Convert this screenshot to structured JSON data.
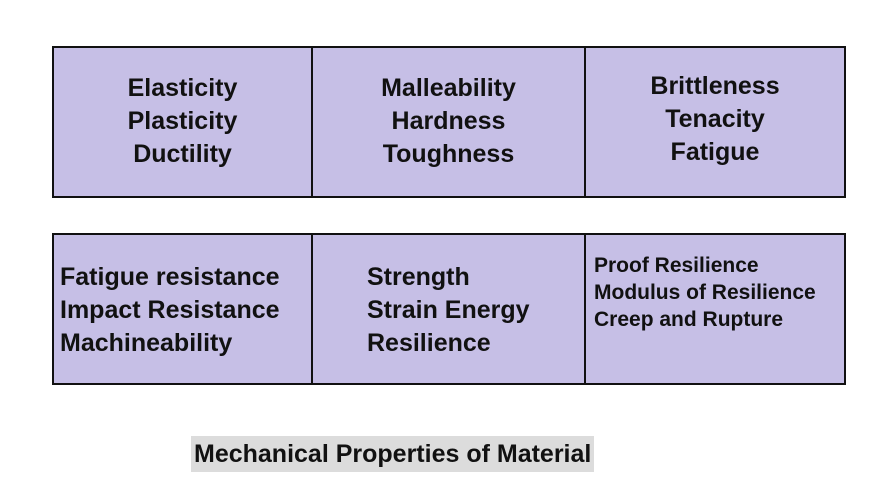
{
  "rows": [
    [
      [
        "Elasticity",
        "Plasticity",
        "Ductility"
      ],
      [
        "Malleability",
        "Hardness",
        "Toughness"
      ],
      [
        "Brittleness",
        "Tenacity",
        "Fatigue"
      ]
    ],
    [
      [
        "Fatigue resistance",
        "Impact Resistance",
        "Machineability"
      ],
      [
        "Strength",
        "Strain Energy",
        "Resilience"
      ],
      [
        "Proof Resilience",
        "Modulus of Resilience",
        "Creep and Rupture"
      ]
    ]
  ],
  "caption": "Mechanical Properties of Material",
  "colors": {
    "cell_fill": "#c6bfe6",
    "border": "#111111",
    "caption_bg": "#dcdcdc"
  }
}
